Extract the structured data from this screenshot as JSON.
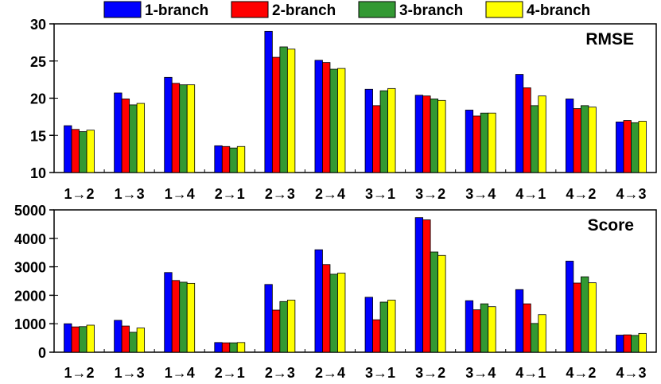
{
  "chart_data": [
    {
      "type": "bar",
      "title": "RMSE",
      "xlabel": "",
      "ylabel": "",
      "categories": [
        "1→2",
        "1→3",
        "1→4",
        "2→1",
        "2→3",
        "2→4",
        "3→1",
        "3→2",
        "3→4",
        "4→1",
        "4→2",
        "4→3"
      ],
      "ylim": [
        10,
        30
      ],
      "yticks": [
        "10",
        "15",
        "20",
        "25",
        "30"
      ],
      "series": [
        {
          "name": "1-branch",
          "color": "#0000ff",
          "values": [
            16.3,
            20.7,
            22.8,
            13.6,
            29.0,
            25.1,
            21.2,
            20.4,
            18.4,
            23.2,
            19.9,
            16.8
          ]
        },
        {
          "name": "2-branch",
          "color": "#ff0000",
          "values": [
            15.8,
            19.9,
            22.0,
            13.5,
            25.5,
            24.8,
            19.0,
            20.3,
            17.6,
            21.4,
            18.6,
            17.0
          ]
        },
        {
          "name": "3-branch",
          "color": "#339933",
          "values": [
            15.5,
            19.1,
            21.8,
            13.3,
            26.9,
            23.9,
            21.0,
            19.9,
            18.0,
            19.0,
            19.0,
            16.7
          ]
        },
        {
          "name": "4-branch",
          "color": "#ffff00",
          "values": [
            15.7,
            19.3,
            21.8,
            13.5,
            26.6,
            24.0,
            21.3,
            19.7,
            18.0,
            20.3,
            18.8,
            16.9
          ]
        }
      ]
    },
    {
      "type": "bar",
      "title": "Score",
      "xlabel": "",
      "ylabel": "",
      "categories": [
        "1→2",
        "1→3",
        "1→4",
        "2→1",
        "2→3",
        "2→4",
        "3→1",
        "3→2",
        "3→4",
        "4→1",
        "4→2",
        "4→3"
      ],
      "ylim": [
        0,
        5000
      ],
      "yticks": [
        "0",
        "1000",
        "2000",
        "3000",
        "4000",
        "5000"
      ],
      "series": [
        {
          "name": "1-branch",
          "color": "#0000ff",
          "values": [
            1000,
            1120,
            2800,
            340,
            2380,
            3600,
            1930,
            4730,
            1810,
            2200,
            3200,
            600
          ]
        },
        {
          "name": "2-branch",
          "color": "#ff0000",
          "values": [
            890,
            920,
            2520,
            330,
            1480,
            3080,
            1140,
            4650,
            1490,
            1700,
            2430,
            610
          ]
        },
        {
          "name": "3-branch",
          "color": "#339933",
          "values": [
            900,
            700,
            2460,
            330,
            1780,
            2740,
            1760,
            3520,
            1700,
            1010,
            2650,
            590
          ]
        },
        {
          "name": "4-branch",
          "color": "#ffff00",
          "values": [
            950,
            850,
            2420,
            340,
            1830,
            2780,
            1830,
            3400,
            1600,
            1320,
            2440,
            660
          ]
        }
      ]
    }
  ]
}
